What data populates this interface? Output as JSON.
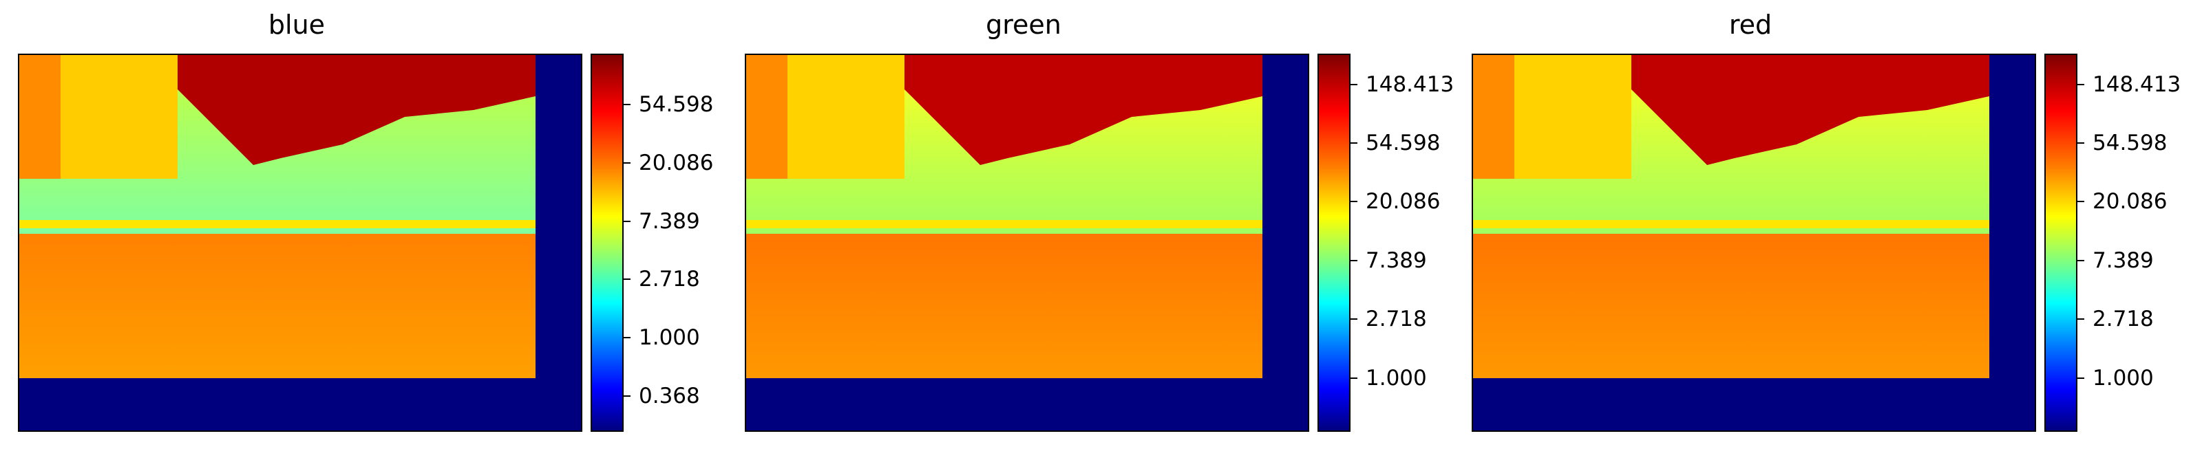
{
  "chart_data": [
    {
      "type": "heatmap",
      "title": "blue",
      "colormap": "jet",
      "colorbar_scale": "log",
      "colorbar_ticks": [
        "0.368",
        "1.000",
        "2.718",
        "7.389",
        "20.086",
        "54.598"
      ],
      "colorbar_tick_values": [
        0.368,
        1.0,
        2.718,
        7.389,
        20.086,
        54.598
      ],
      "colorbar_range": [
        0.2,
        130
      ]
    },
    {
      "type": "heatmap",
      "title": "green",
      "colormap": "jet",
      "colorbar_scale": "log",
      "colorbar_ticks": [
        "1.000",
        "2.718",
        "7.389",
        "20.086",
        "54.598",
        "148.413"
      ],
      "colorbar_tick_values": [
        1.0,
        2.718,
        7.389,
        20.086,
        54.598,
        148.413
      ],
      "colorbar_range": [
        0.4,
        250
      ]
    },
    {
      "type": "heatmap",
      "title": "red",
      "colormap": "jet",
      "colorbar_scale": "log",
      "colorbar_ticks": [
        "1.000",
        "2.718",
        "7.389",
        "20.086",
        "54.598",
        "148.413"
      ],
      "colorbar_tick_values": [
        1.0,
        2.718,
        7.389,
        20.086,
        54.598,
        148.413
      ],
      "colorbar_range": [
        0.4,
        250
      ]
    }
  ]
}
